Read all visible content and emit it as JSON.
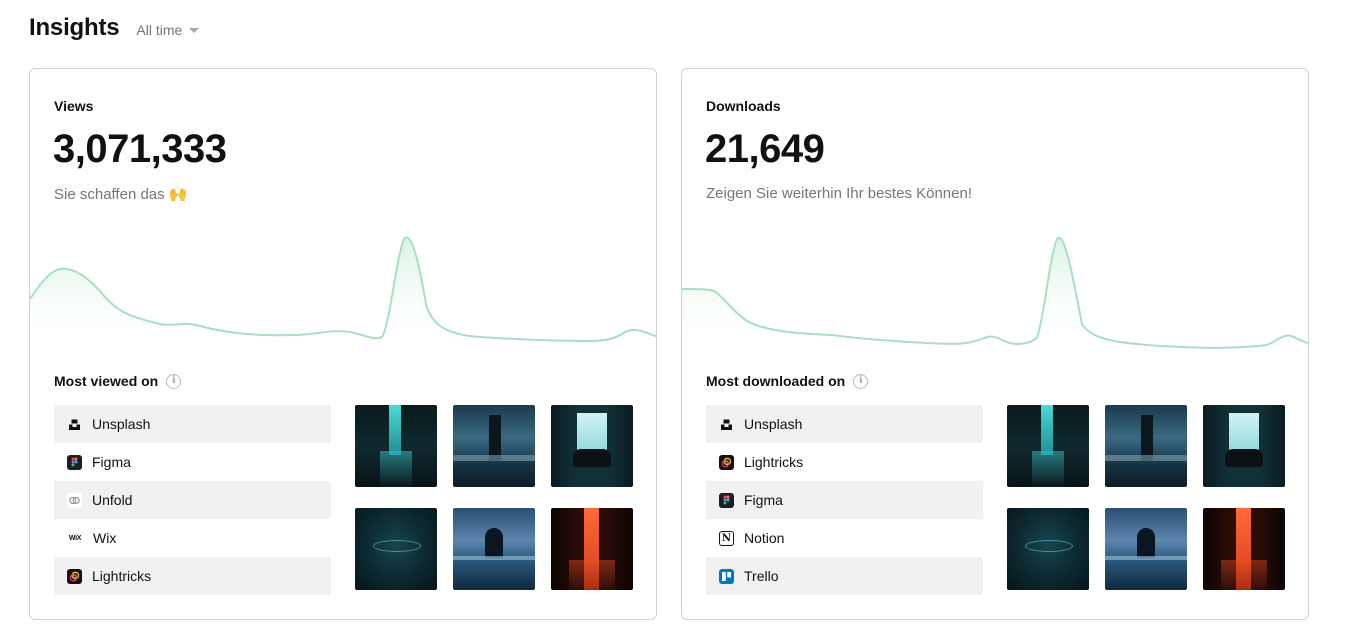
{
  "header": {
    "title": "Insights",
    "range": "All time"
  },
  "views": {
    "label": "Views",
    "value": "3,071,333",
    "subtitle": "Sie schaffen das 🙌",
    "section_title": "Most viewed on",
    "chart_color": "#a8e0bf",
    "platforms": [
      {
        "name": "Unsplash",
        "icon": "unsplash-icon"
      },
      {
        "name": "Figma",
        "icon": "figma-icon"
      },
      {
        "name": "Unfold",
        "icon": "unfold-icon"
      },
      {
        "name": "Wix",
        "icon": "wix-icon"
      },
      {
        "name": "Lightricks",
        "icon": "lightricks-icon"
      }
    ]
  },
  "downloads": {
    "label": "Downloads",
    "value": "21,649",
    "subtitle": "Zeigen Sie weiterhin Ihr bestes Können!",
    "section_title": "Most downloaded on",
    "chart_color": "#a8e0bf",
    "platforms": [
      {
        "name": "Unsplash",
        "icon": "unsplash-icon"
      },
      {
        "name": "Lightricks",
        "icon": "lightricks-icon"
      },
      {
        "name": "Figma",
        "icon": "figma-icon"
      },
      {
        "name": "Notion",
        "icon": "notion-icon"
      },
      {
        "name": "Trello",
        "icon": "trello-icon"
      }
    ]
  },
  "icons": {
    "wix_logo_text": "WiX",
    "notion_logo_text": "N",
    "info_icon_text": "i"
  }
}
